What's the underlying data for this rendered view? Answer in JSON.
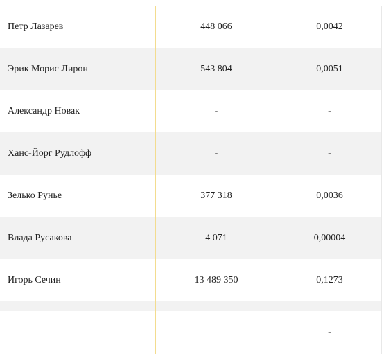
{
  "rows": [
    {
      "name": "Петр Лазарев",
      "shares": "448 066",
      "percent": "0,0042"
    },
    {
      "name": "Эрик Морис Лирон",
      "shares": "543 804",
      "percent": "0,0051"
    },
    {
      "name": "Александр Новак",
      "shares": "-",
      "percent": "-"
    },
    {
      "name": "Ханс-Йорг Рудлофф",
      "shares": "-",
      "percent": "-"
    },
    {
      "name": "Зелько Рунье",
      "shares": "377 318",
      "percent": "0,0036"
    },
    {
      "name": "Влада Русакова",
      "shares": "4 071",
      "percent": "0,00004"
    },
    {
      "name": "Игорь Сечин",
      "shares": "13 489 350",
      "percent": "0,1273"
    },
    {
      "name": "",
      "shares": "",
      "percent": "-"
    }
  ]
}
